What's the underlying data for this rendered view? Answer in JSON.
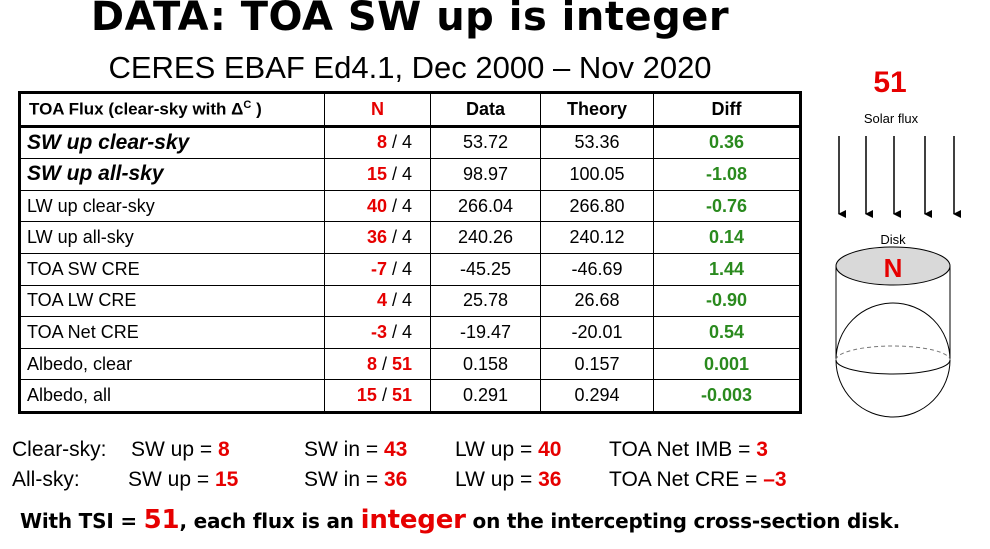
{
  "title": "DATA: TOA SW up is integer",
  "subtitle": "CERES EBAF Ed4.1, Dec 2000 – Nov 2020",
  "table": {
    "headers": {
      "name": "TOA Flux (clear-sky with Δ",
      "name_sup": "C",
      "name_end": " )",
      "n": "N",
      "data": "Data",
      "theory": "Theory",
      "diff": "Diff"
    },
    "rows": [
      {
        "name": "SW up clear-sky",
        "n": "8",
        "denom": " / 4",
        "data": "53.72",
        "theory": "53.36",
        "diff": "0.36"
      },
      {
        "name": "SW up all-sky",
        "n": "15",
        "denom": " / 4",
        "data": "98.97",
        "theory": "100.05",
        "diff": "-1.08"
      },
      {
        "name": "LW up clear-sky",
        "n": "40",
        "denom": " / 4",
        "data": "266.04",
        "theory": "266.80",
        "diff": "-0.76"
      },
      {
        "name": "LW up all-sky",
        "n": "36",
        "denom": " / 4",
        "data": "240.26",
        "theory": "240.12",
        "diff": "0.14"
      },
      {
        "name": "TOA SW CRE",
        "n": "-7",
        "denom": " / 4",
        "data": "-45.25",
        "theory": "-46.69",
        "diff": "1.44"
      },
      {
        "name": "TOA LW CRE",
        "n": "4",
        "denom": " / 4",
        "data": "25.78",
        "theory": "26.68",
        "diff": "-0.90"
      },
      {
        "name": "TOA Net CRE",
        "n": "-3",
        "denom": " / 4",
        "data": "-19.47",
        "theory": "-20.01",
        "diff": "0.54"
      },
      {
        "name": "Albedo, clear",
        "n": "8",
        "denom_sep": " / ",
        "denom_red": "51",
        "data": "0.158",
        "theory": "0.157",
        "diff": "0.001"
      },
      {
        "name": "Albedo, all",
        "n": "15",
        "denom_sep": " / ",
        "denom_red": "51",
        "data": "0.291",
        "theory": "0.294",
        "diff": "-0.003"
      }
    ]
  },
  "summary": {
    "clear": {
      "label": "Clear-sky:",
      "sw_up": "SW up = ",
      "sw_up_val": "8",
      "sw_in": "SW in = ",
      "sw_in_val": "43",
      "lw_up": "LW up = ",
      "lw_up_val": "40",
      "toa": "TOA Net IMB  = ",
      "toa_val": "3"
    },
    "all": {
      "label": "All-sky:",
      "sw_up": "SW up  = ",
      "sw_up_val": "15",
      "sw_in": "SW in = ",
      "sw_in_val": "36",
      "lw_up": "LW up = ",
      "lw_up_val": "36",
      "toa": "TOA Net CRE = ",
      "toa_val": "–3"
    }
  },
  "bottom": {
    "part1": "With TSI = ",
    "tsi": "51",
    "part2": ", each flux is an ",
    "integer": "integer",
    "part3": " on the intercepting cross-section disk."
  },
  "diagram": {
    "number": "51",
    "solar_label": "Solar flux",
    "disk_label": "Disk",
    "disk_n": "N"
  },
  "colors": {
    "red": "#e60000",
    "green": "#2a8a1e"
  }
}
